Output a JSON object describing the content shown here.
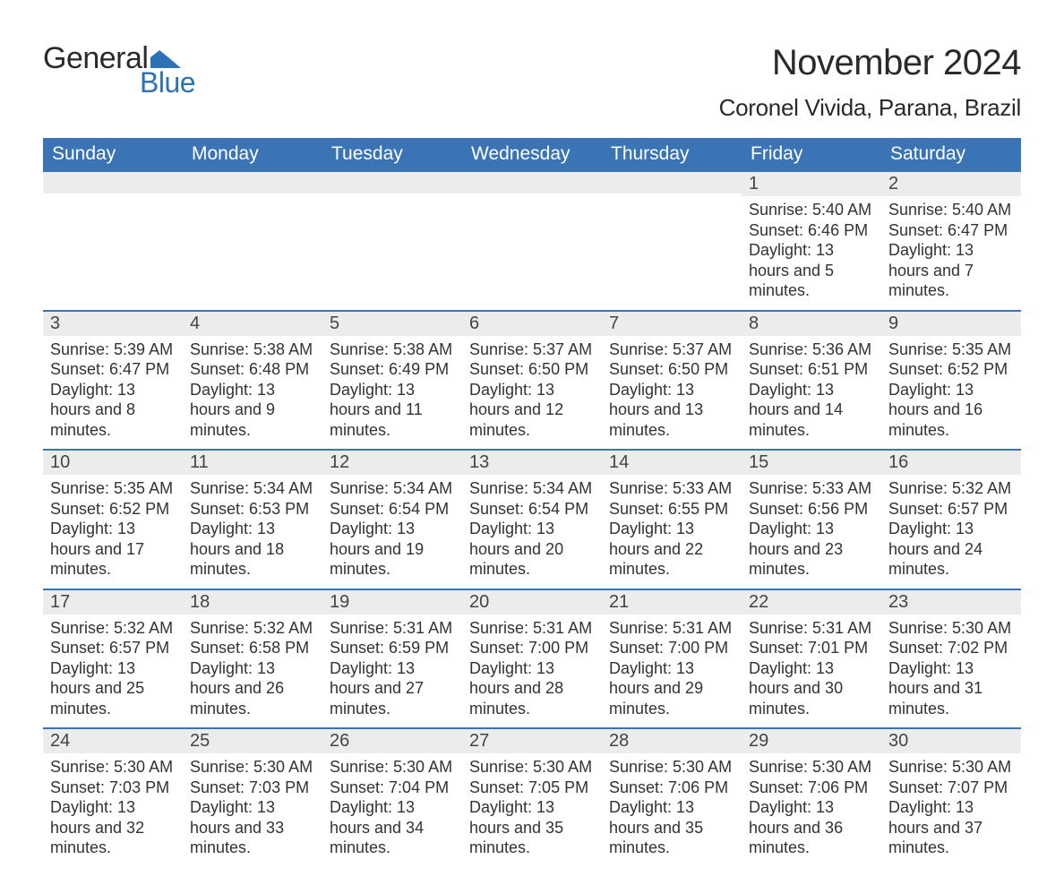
{
  "colors": {
    "blue": "#3a74b4",
    "blue_dark": "#2d5f9a",
    "text": "#303030",
    "gray_bg": "#ececec",
    "white": "#ffffff"
  },
  "logo": {
    "line1": "General",
    "line2": "Blue",
    "flag_color": "#2c72b6"
  },
  "title": "November 2024",
  "location": "Coronel Vivida, Parana, Brazil",
  "weekday_headers": [
    "Sunday",
    "Monday",
    "Tuesday",
    "Wednesday",
    "Thursday",
    "Friday",
    "Saturday"
  ],
  "labels": {
    "sunrise": "Sunrise:",
    "sunset": "Sunset:",
    "daylight": "Daylight:"
  },
  "weeks": [
    [
      {
        "empty": true
      },
      {
        "empty": true
      },
      {
        "empty": true
      },
      {
        "empty": true
      },
      {
        "empty": true
      },
      {
        "day": "1",
        "sunrise": "5:40 AM",
        "sunset": "6:46 PM",
        "daylight": "13 hours and 5 minutes."
      },
      {
        "day": "2",
        "sunrise": "5:40 AM",
        "sunset": "6:47 PM",
        "daylight": "13 hours and 7 minutes."
      }
    ],
    [
      {
        "day": "3",
        "sunrise": "5:39 AM",
        "sunset": "6:47 PM",
        "daylight": "13 hours and 8 minutes."
      },
      {
        "day": "4",
        "sunrise": "5:38 AM",
        "sunset": "6:48 PM",
        "daylight": "13 hours and 9 minutes."
      },
      {
        "day": "5",
        "sunrise": "5:38 AM",
        "sunset": "6:49 PM",
        "daylight": "13 hours and 11 minutes."
      },
      {
        "day": "6",
        "sunrise": "5:37 AM",
        "sunset": "6:50 PM",
        "daylight": "13 hours and 12 minutes."
      },
      {
        "day": "7",
        "sunrise": "5:37 AM",
        "sunset": "6:50 PM",
        "daylight": "13 hours and 13 minutes."
      },
      {
        "day": "8",
        "sunrise": "5:36 AM",
        "sunset": "6:51 PM",
        "daylight": "13 hours and 14 minutes."
      },
      {
        "day": "9",
        "sunrise": "5:35 AM",
        "sunset": "6:52 PM",
        "daylight": "13 hours and 16 minutes."
      }
    ],
    [
      {
        "day": "10",
        "sunrise": "5:35 AM",
        "sunset": "6:52 PM",
        "daylight": "13 hours and 17 minutes."
      },
      {
        "day": "11",
        "sunrise": "5:34 AM",
        "sunset": "6:53 PM",
        "daylight": "13 hours and 18 minutes."
      },
      {
        "day": "12",
        "sunrise": "5:34 AM",
        "sunset": "6:54 PM",
        "daylight": "13 hours and 19 minutes."
      },
      {
        "day": "13",
        "sunrise": "5:34 AM",
        "sunset": "6:54 PM",
        "daylight": "13 hours and 20 minutes."
      },
      {
        "day": "14",
        "sunrise": "5:33 AM",
        "sunset": "6:55 PM",
        "daylight": "13 hours and 22 minutes."
      },
      {
        "day": "15",
        "sunrise": "5:33 AM",
        "sunset": "6:56 PM",
        "daylight": "13 hours and 23 minutes."
      },
      {
        "day": "16",
        "sunrise": "5:32 AM",
        "sunset": "6:57 PM",
        "daylight": "13 hours and 24 minutes."
      }
    ],
    [
      {
        "day": "17",
        "sunrise": "5:32 AM",
        "sunset": "6:57 PM",
        "daylight": "13 hours and 25 minutes."
      },
      {
        "day": "18",
        "sunrise": "5:32 AM",
        "sunset": "6:58 PM",
        "daylight": "13 hours and 26 minutes."
      },
      {
        "day": "19",
        "sunrise": "5:31 AM",
        "sunset": "6:59 PM",
        "daylight": "13 hours and 27 minutes."
      },
      {
        "day": "20",
        "sunrise": "5:31 AM",
        "sunset": "7:00 PM",
        "daylight": "13 hours and 28 minutes."
      },
      {
        "day": "21",
        "sunrise": "5:31 AM",
        "sunset": "7:00 PM",
        "daylight": "13 hours and 29 minutes."
      },
      {
        "day": "22",
        "sunrise": "5:31 AM",
        "sunset": "7:01 PM",
        "daylight": "13 hours and 30 minutes."
      },
      {
        "day": "23",
        "sunrise": "5:30 AM",
        "sunset": "7:02 PM",
        "daylight": "13 hours and 31 minutes."
      }
    ],
    [
      {
        "day": "24",
        "sunrise": "5:30 AM",
        "sunset": "7:03 PM",
        "daylight": "13 hours and 32 minutes."
      },
      {
        "day": "25",
        "sunrise": "5:30 AM",
        "sunset": "7:03 PM",
        "daylight": "13 hours and 33 minutes."
      },
      {
        "day": "26",
        "sunrise": "5:30 AM",
        "sunset": "7:04 PM",
        "daylight": "13 hours and 34 minutes."
      },
      {
        "day": "27",
        "sunrise": "5:30 AM",
        "sunset": "7:05 PM",
        "daylight": "13 hours and 35 minutes."
      },
      {
        "day": "28",
        "sunrise": "5:30 AM",
        "sunset": "7:06 PM",
        "daylight": "13 hours and 35 minutes."
      },
      {
        "day": "29",
        "sunrise": "5:30 AM",
        "sunset": "7:06 PM",
        "daylight": "13 hours and 36 minutes."
      },
      {
        "day": "30",
        "sunrise": "5:30 AM",
        "sunset": "7:07 PM",
        "daylight": "13 hours and 37 minutes."
      }
    ]
  ]
}
